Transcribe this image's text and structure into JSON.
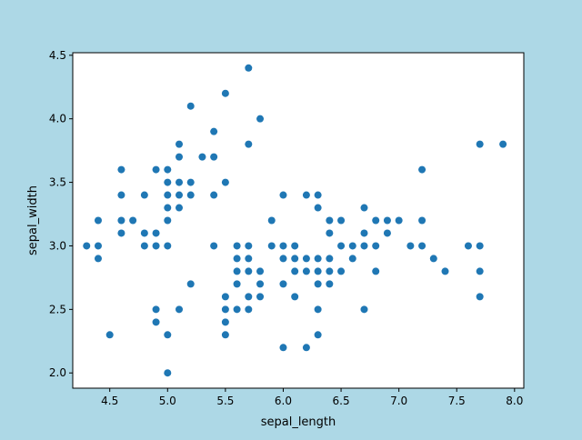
{
  "figure": {
    "background": "#add8e6"
  },
  "chart_data": {
    "type": "scatter",
    "xlabel": "sepal_length",
    "ylabel": "sepal_width",
    "xlim": [
      4.18,
      8.08
    ],
    "ylim": [
      1.88,
      4.52
    ],
    "xticks": [
      4.5,
      5.0,
      5.5,
      6.0,
      6.5,
      7.0,
      7.5,
      8.0
    ],
    "xtick_labels": [
      "4.5",
      "5.0",
      "5.5",
      "6.0",
      "6.5",
      "7.0",
      "7.5",
      "8.0"
    ],
    "yticks": [
      2.0,
      2.5,
      3.0,
      3.5,
      4.0,
      4.5
    ],
    "ytick_labels": [
      "2.0",
      "2.5",
      "3.0",
      "3.5",
      "4.0",
      "4.5"
    ],
    "grid": false,
    "legend": "none",
    "marker_color": "#1f77b4",
    "plot_background": "#ffffff",
    "points": [
      [
        4.3,
        3.0
      ],
      [
        4.4,
        3.2
      ],
      [
        4.4,
        3.0
      ],
      [
        4.4,
        2.9
      ],
      [
        4.5,
        2.3
      ],
      [
        4.6,
        3.6
      ],
      [
        4.6,
        3.4
      ],
      [
        4.6,
        3.2
      ],
      [
        4.6,
        3.1
      ],
      [
        4.7,
        3.2
      ],
      [
        4.8,
        3.4
      ],
      [
        4.8,
        3.1
      ],
      [
        4.8,
        3.0
      ],
      [
        4.9,
        3.6
      ],
      [
        4.9,
        3.1
      ],
      [
        4.9,
        3.0
      ],
      [
        4.9,
        2.5
      ],
      [
        4.9,
        2.4
      ],
      [
        5.0,
        3.6
      ],
      [
        5.0,
        3.5
      ],
      [
        5.0,
        3.4
      ],
      [
        5.0,
        3.3
      ],
      [
        5.0,
        3.2
      ],
      [
        5.0,
        3.0
      ],
      [
        5.0,
        2.3
      ],
      [
        5.0,
        2.0
      ],
      [
        5.1,
        3.8
      ],
      [
        5.1,
        3.7
      ],
      [
        5.1,
        3.5
      ],
      [
        5.1,
        3.4
      ],
      [
        5.1,
        3.3
      ],
      [
        5.1,
        2.5
      ],
      [
        5.2,
        4.1
      ],
      [
        5.2,
        3.5
      ],
      [
        5.2,
        3.4
      ],
      [
        5.2,
        2.7
      ],
      [
        5.3,
        3.7
      ],
      [
        5.4,
        3.9
      ],
      [
        5.4,
        3.7
      ],
      [
        5.4,
        3.4
      ],
      [
        5.4,
        3.0
      ],
      [
        5.5,
        4.2
      ],
      [
        5.5,
        3.5
      ],
      [
        5.5,
        2.6
      ],
      [
        5.5,
        2.5
      ],
      [
        5.5,
        2.4
      ],
      [
        5.5,
        2.3
      ],
      [
        5.6,
        3.0
      ],
      [
        5.6,
        2.9
      ],
      [
        5.6,
        2.8
      ],
      [
        5.6,
        2.7
      ],
      [
        5.6,
        2.5
      ],
      [
        5.7,
        4.4
      ],
      [
        5.7,
        3.8
      ],
      [
        5.7,
        3.0
      ],
      [
        5.7,
        2.9
      ],
      [
        5.7,
        2.8
      ],
      [
        5.7,
        2.6
      ],
      [
        5.7,
        2.5
      ],
      [
        5.8,
        4.0
      ],
      [
        5.8,
        2.8
      ],
      [
        5.8,
        2.7
      ],
      [
        5.8,
        2.6
      ],
      [
        5.9,
        3.2
      ],
      [
        5.9,
        3.0
      ],
      [
        6.0,
        3.4
      ],
      [
        6.0,
        3.0
      ],
      [
        6.0,
        2.9
      ],
      [
        6.0,
        2.7
      ],
      [
        6.0,
        2.2
      ],
      [
        6.1,
        3.0
      ],
      [
        6.1,
        2.9
      ],
      [
        6.1,
        2.8
      ],
      [
        6.1,
        2.6
      ],
      [
        6.2,
        3.4
      ],
      [
        6.2,
        2.9
      ],
      [
        6.2,
        2.8
      ],
      [
        6.2,
        2.2
      ],
      [
        6.3,
        3.4
      ],
      [
        6.3,
        3.3
      ],
      [
        6.3,
        2.9
      ],
      [
        6.3,
        2.8
      ],
      [
        6.3,
        2.7
      ],
      [
        6.3,
        2.5
      ],
      [
        6.3,
        2.3
      ],
      [
        6.4,
        3.2
      ],
      [
        6.4,
        3.1
      ],
      [
        6.4,
        2.9
      ],
      [
        6.4,
        2.8
      ],
      [
        6.4,
        2.7
      ],
      [
        6.5,
        3.2
      ],
      [
        6.5,
        3.0
      ],
      [
        6.5,
        2.8
      ],
      [
        6.6,
        3.0
      ],
      [
        6.6,
        2.9
      ],
      [
        6.7,
        3.3
      ],
      [
        6.7,
        3.1
      ],
      [
        6.7,
        3.0
      ],
      [
        6.7,
        2.5
      ],
      [
        6.8,
        3.2
      ],
      [
        6.8,
        3.0
      ],
      [
        6.8,
        2.8
      ],
      [
        6.9,
        3.2
      ],
      [
        6.9,
        3.1
      ],
      [
        7.0,
        3.2
      ],
      [
        7.1,
        3.0
      ],
      [
        7.2,
        3.6
      ],
      [
        7.2,
        3.2
      ],
      [
        7.2,
        3.0
      ],
      [
        7.3,
        2.9
      ],
      [
        7.4,
        2.8
      ],
      [
        7.6,
        3.0
      ],
      [
        7.7,
        3.8
      ],
      [
        7.7,
        3.0
      ],
      [
        7.7,
        2.8
      ],
      [
        7.7,
        2.6
      ],
      [
        7.9,
        3.8
      ]
    ]
  }
}
